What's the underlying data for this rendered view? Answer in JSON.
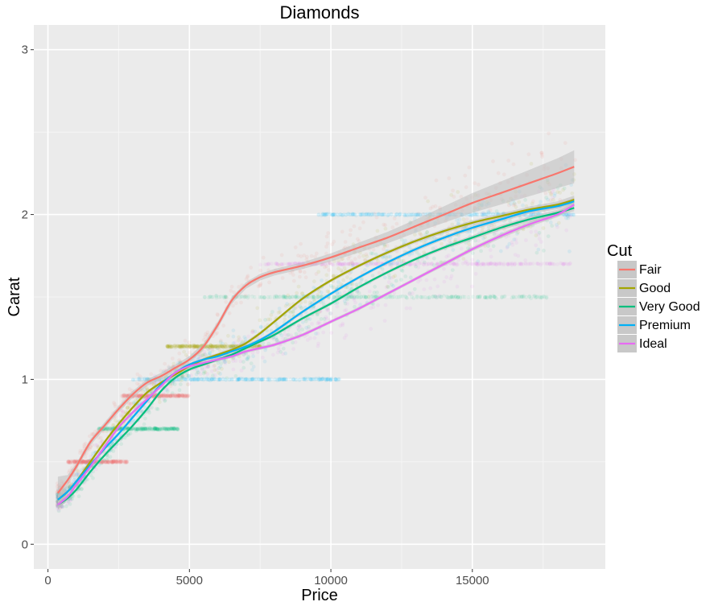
{
  "chart_data": {
    "type": "scatter",
    "title": "Diamonds",
    "xlabel": "Price",
    "ylabel": "Carat",
    "xlim": [
      -500,
      19700
    ],
    "ylim": [
      -0.15,
      3.15
    ],
    "x_ticks": [
      0,
      5000,
      10000,
      15000
    ],
    "y_ticks": [
      0,
      1,
      2,
      3
    ],
    "x_tick_labels": [
      "0",
      "5000",
      "10000",
      "15000"
    ],
    "y_tick_labels": [
      "0",
      "1",
      "2",
      "3"
    ],
    "grid": true,
    "legend": {
      "title": "Cut",
      "placement": "right",
      "entries": [
        "Fair",
        "Good",
        "Very Good",
        "Premium",
        "Ideal"
      ]
    },
    "colors": {
      "Fair": "#F8766D",
      "Good": "#A3A500",
      "Very Good": "#00BF7D",
      "Premium": "#00B0F6",
      "Ideal": "#E76BF3",
      "panel": "#EBEBEB",
      "grid_major": "#FFFFFF",
      "ribbon": "#BDBDBD"
    },
    "smooth_series": [
      {
        "name": "Fair",
        "color": "#F8766D",
        "points": [
          [
            350,
            0.31
          ],
          [
            700,
            0.39
          ],
          [
            1000,
            0.47
          ],
          [
            1500,
            0.62
          ],
          [
            2000,
            0.72
          ],
          [
            2500,
            0.82
          ],
          [
            3000,
            0.91
          ],
          [
            3500,
            0.98
          ],
          [
            4000,
            1.02
          ],
          [
            4500,
            1.07
          ],
          [
            5000,
            1.12
          ],
          [
            5500,
            1.2
          ],
          [
            6000,
            1.33
          ],
          [
            6500,
            1.48
          ],
          [
            7000,
            1.57
          ],
          [
            7500,
            1.62
          ],
          [
            8000,
            1.65
          ],
          [
            9000,
            1.69
          ],
          [
            10000,
            1.74
          ],
          [
            11000,
            1.8
          ],
          [
            12000,
            1.86
          ],
          [
            13000,
            1.93
          ],
          [
            14000,
            2.0
          ],
          [
            15000,
            2.07
          ],
          [
            16000,
            2.13
          ],
          [
            17000,
            2.19
          ],
          [
            18000,
            2.25
          ],
          [
            18600,
            2.29
          ]
        ],
        "band": [
          0.1,
          0.03,
          0.02,
          0.02,
          0.02,
          0.02,
          0.02,
          0.02,
          0.02,
          0.02,
          0.02,
          0.02,
          0.02,
          0.02,
          0.02,
          0.02,
          0.02,
          0.02,
          0.025,
          0.03,
          0.035,
          0.04,
          0.05,
          0.06,
          0.07,
          0.08,
          0.09,
          0.1
        ]
      },
      {
        "name": "Good",
        "color": "#A3A500",
        "points": [
          [
            350,
            0.27
          ],
          [
            700,
            0.32
          ],
          [
            1000,
            0.38
          ],
          [
            1500,
            0.5
          ],
          [
            2000,
            0.62
          ],
          [
            2500,
            0.73
          ],
          [
            3000,
            0.83
          ],
          [
            3500,
            0.92
          ],
          [
            4000,
            0.98
          ],
          [
            4500,
            1.03
          ],
          [
            5000,
            1.08
          ],
          [
            5500,
            1.12
          ],
          [
            6000,
            1.15
          ],
          [
            6500,
            1.18
          ],
          [
            7000,
            1.22
          ],
          [
            7500,
            1.28
          ],
          [
            8000,
            1.35
          ],
          [
            9000,
            1.49
          ],
          [
            10000,
            1.6
          ],
          [
            11000,
            1.69
          ],
          [
            12000,
            1.77
          ],
          [
            13000,
            1.84
          ],
          [
            14000,
            1.9
          ],
          [
            15000,
            1.95
          ],
          [
            16000,
            1.99
          ],
          [
            17000,
            2.03
          ],
          [
            18000,
            2.06
          ],
          [
            18600,
            2.09
          ]
        ],
        "band": [
          0.03,
          0.01,
          0.01,
          0.01,
          0.01,
          0.01,
          0.01,
          0.01,
          0.01,
          0.01,
          0.01,
          0.01,
          0.01,
          0.01,
          0.01,
          0.01,
          0.01,
          0.01,
          0.01,
          0.01,
          0.012,
          0.012,
          0.014,
          0.015,
          0.016,
          0.018,
          0.02,
          0.025
        ]
      },
      {
        "name": "Very Good",
        "color": "#00BF7D",
        "points": [
          [
            350,
            0.24
          ],
          [
            700,
            0.28
          ],
          [
            1000,
            0.33
          ],
          [
            1500,
            0.44
          ],
          [
            2000,
            0.54
          ],
          [
            2500,
            0.63
          ],
          [
            3000,
            0.72
          ],
          [
            3500,
            0.82
          ],
          [
            4000,
            0.93
          ],
          [
            4500,
            1.01
          ],
          [
            5000,
            1.06
          ],
          [
            5500,
            1.09
          ],
          [
            6000,
            1.12
          ],
          [
            6500,
            1.15
          ],
          [
            7000,
            1.19
          ],
          [
            7500,
            1.23
          ],
          [
            8000,
            1.27
          ],
          [
            9000,
            1.37
          ],
          [
            10000,
            1.46
          ],
          [
            11000,
            1.56
          ],
          [
            12000,
            1.65
          ],
          [
            13000,
            1.73
          ],
          [
            14000,
            1.8
          ],
          [
            15000,
            1.86
          ],
          [
            16000,
            1.92
          ],
          [
            17000,
            1.97
          ],
          [
            18000,
            2.01
          ],
          [
            18600,
            2.04
          ]
        ],
        "band": [
          0.03,
          0.01,
          0.01,
          0.01,
          0.01,
          0.01,
          0.01,
          0.01,
          0.01,
          0.01,
          0.01,
          0.01,
          0.01,
          0.01,
          0.01,
          0.01,
          0.01,
          0.01,
          0.01,
          0.01,
          0.01,
          0.01,
          0.012,
          0.014,
          0.015,
          0.016,
          0.018,
          0.02
        ]
      },
      {
        "name": "Premium",
        "color": "#00B0F6",
        "points": [
          [
            350,
            0.27
          ],
          [
            700,
            0.32
          ],
          [
            1000,
            0.38
          ],
          [
            1500,
            0.48
          ],
          [
            2000,
            0.58
          ],
          [
            2500,
            0.67
          ],
          [
            3000,
            0.77
          ],
          [
            3500,
            0.87
          ],
          [
            4000,
            0.97
          ],
          [
            4500,
            1.04
          ],
          [
            5000,
            1.09
          ],
          [
            5500,
            1.12
          ],
          [
            6000,
            1.14
          ],
          [
            6500,
            1.17
          ],
          [
            7000,
            1.2
          ],
          [
            7500,
            1.24
          ],
          [
            8000,
            1.29
          ],
          [
            9000,
            1.41
          ],
          [
            10000,
            1.52
          ],
          [
            11000,
            1.62
          ],
          [
            12000,
            1.71
          ],
          [
            13000,
            1.79
          ],
          [
            14000,
            1.86
          ],
          [
            15000,
            1.92
          ],
          [
            16000,
            1.97
          ],
          [
            17000,
            2.02
          ],
          [
            18000,
            2.05
          ],
          [
            18600,
            2.08
          ]
        ],
        "band": [
          0.03,
          0.01,
          0.01,
          0.01,
          0.01,
          0.01,
          0.01,
          0.01,
          0.01,
          0.01,
          0.01,
          0.01,
          0.01,
          0.01,
          0.01,
          0.01,
          0.01,
          0.01,
          0.01,
          0.01,
          0.01,
          0.012,
          0.012,
          0.014,
          0.015,
          0.016,
          0.018,
          0.02
        ]
      },
      {
        "name": "Ideal",
        "color": "#E76BF3",
        "points": [
          [
            350,
            0.24
          ],
          [
            700,
            0.29
          ],
          [
            1000,
            0.36
          ],
          [
            1500,
            0.47
          ],
          [
            2000,
            0.59
          ],
          [
            2500,
            0.71
          ],
          [
            3000,
            0.8
          ],
          [
            3500,
            0.88
          ],
          [
            4000,
            0.96
          ],
          [
            4500,
            1.04
          ],
          [
            5000,
            1.08
          ],
          [
            5500,
            1.1
          ],
          [
            6000,
            1.12
          ],
          [
            6500,
            1.14
          ],
          [
            7000,
            1.17
          ],
          [
            7500,
            1.19
          ],
          [
            8000,
            1.21
          ],
          [
            9000,
            1.27
          ],
          [
            10000,
            1.35
          ],
          [
            11000,
            1.43
          ],
          [
            12000,
            1.52
          ],
          [
            13000,
            1.61
          ],
          [
            14000,
            1.7
          ],
          [
            15000,
            1.79
          ],
          [
            16000,
            1.87
          ],
          [
            17000,
            1.94
          ],
          [
            18000,
            2.0
          ],
          [
            18600,
            2.06
          ]
        ],
        "band": [
          0.03,
          0.01,
          0.01,
          0.01,
          0.01,
          0.01,
          0.01,
          0.01,
          0.01,
          0.01,
          0.01,
          0.01,
          0.01,
          0.01,
          0.01,
          0.01,
          0.01,
          0.01,
          0.01,
          0.01,
          0.01,
          0.01,
          0.012,
          0.012,
          0.014,
          0.015,
          0.016,
          0.02
        ]
      }
    ],
    "scatter_bands": [
      {
        "cut": "Fair",
        "carat": 0.5,
        "price_range": [
          700,
          2800
        ]
      },
      {
        "cut": "Very Good",
        "carat": 0.7,
        "price_range": [
          1800,
          4600
        ]
      },
      {
        "cut": "Fair",
        "carat": 0.9,
        "price_range": [
          2600,
          5000
        ]
      },
      {
        "cut": "Premium",
        "carat": 1.0,
        "price_range": [
          3000,
          10300
        ]
      },
      {
        "cut": "Good",
        "carat": 1.2,
        "price_range": [
          4200,
          7500
        ]
      },
      {
        "cut": "Very Good",
        "carat": 1.5,
        "price_range": [
          5500,
          17800
        ]
      },
      {
        "cut": "Ideal",
        "carat": 1.7,
        "price_range": [
          7500,
          18500
        ]
      },
      {
        "cut": "Premium",
        "carat": 2.0,
        "price_range": [
          9500,
          18600
        ]
      }
    ]
  }
}
